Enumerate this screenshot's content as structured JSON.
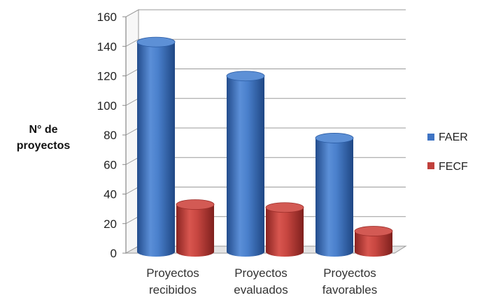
{
  "chart_data": {
    "type": "bar",
    "style": "3d-cylinder",
    "categories": [
      [
        "Proyectos",
        "recibidos"
      ],
      [
        "Proyectos",
        "evaluados"
      ],
      [
        "Proyectos",
        "favorables"
      ]
    ],
    "series": [
      {
        "name": "FAER",
        "color": "#3f74c4",
        "values": [
          141,
          118,
          76
        ]
      },
      {
        "name": "FECF",
        "color": "#c0403c",
        "values": [
          31,
          29,
          13
        ]
      }
    ],
    "ylabel": [
      "N° de",
      "proyectos"
    ],
    "ylim": [
      0,
      160
    ],
    "yticks": [
      "0",
      "20",
      "40",
      "60",
      "80",
      "100",
      "120",
      "140",
      "160"
    ],
    "grid": true,
    "legend_position": "right"
  }
}
